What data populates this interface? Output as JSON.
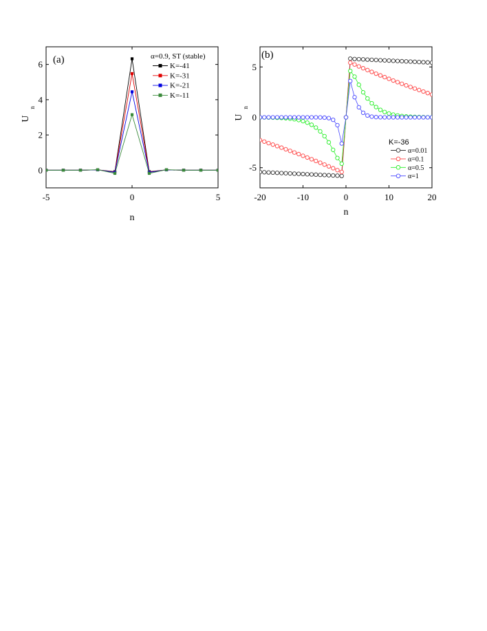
{
  "chart_data": [
    {
      "type": "line",
      "panel_label": "(a)",
      "xlabel": "n",
      "ylabel_main": "U",
      "ylabel_sub": "n",
      "xlim": [
        -5,
        5
      ],
      "ylim": [
        -1,
        7
      ],
      "xticks": [
        -5,
        0,
        5
      ],
      "xtick_labels": [
        "-5",
        "0",
        "5"
      ],
      "yticks": [
        0,
        2,
        4,
        6
      ],
      "ytick_labels": [
        "0",
        "2",
        "4",
        "6"
      ],
      "legend_title": "α=0.9, ST (stable)",
      "legend_position": "top-right",
      "x": [
        -5,
        -4,
        -3,
        -2,
        -1,
        0,
        1,
        2,
        3,
        4,
        5
      ],
      "series": [
        {
          "name": "K=-41",
          "color": "#000000",
          "marker": "filled-square",
          "values": [
            0,
            0,
            0,
            0.02,
            -0.08,
            6.32,
            -0.08,
            0.02,
            0,
            0,
            0
          ]
        },
        {
          "name": "K=-31",
          "color": "#e00000",
          "marker": "filled-square",
          "values": [
            0,
            0,
            0,
            0.02,
            -0.1,
            5.48,
            -0.1,
            0.02,
            0,
            0,
            0
          ]
        },
        {
          "name": "K=-21",
          "color": "#0000e0",
          "marker": "filled-square",
          "values": [
            0,
            0,
            0,
            0.02,
            -0.12,
            4.45,
            -0.12,
            0.02,
            0,
            0,
            0
          ]
        },
        {
          "name": "K=-11",
          "color": "#3a8a3a",
          "marker": "filled-square",
          "values": [
            0,
            0,
            0,
            0.03,
            -0.18,
            3.15,
            -0.18,
            0.03,
            0,
            0,
            0
          ]
        }
      ]
    },
    {
      "type": "scatter",
      "panel_label": "(b)",
      "xlabel": "n",
      "ylabel_main": "U",
      "ylabel_sub": "n",
      "xlim": [
        -20,
        20
      ],
      "ylim": [
        -7,
        7
      ],
      "xticks": [
        -20,
        -10,
        0,
        10,
        20
      ],
      "xtick_labels": [
        "-20",
        "-10",
        "0",
        "10",
        "20"
      ],
      "yticks": [
        -5,
        0,
        5
      ],
      "ytick_labels": [
        "-5",
        "0",
        "5"
      ],
      "legend_title": "K=-36",
      "legend_position": "bottom-right",
      "x": [
        -20,
        -19,
        -18,
        -17,
        -16,
        -15,
        -14,
        -13,
        -12,
        -11,
        -10,
        -9,
        -8,
        -7,
        -6,
        -5,
        -4,
        -3,
        -2,
        -1,
        0,
        1,
        2,
        3,
        4,
        5,
        6,
        7,
        8,
        9,
        10,
        11,
        12,
        13,
        14,
        15,
        16,
        17,
        18,
        19,
        20
      ],
      "series": [
        {
          "name": "α=0.01",
          "color": "#333333",
          "marker": "open-circle",
          "values": [
            -5.43,
            -5.45,
            -5.47,
            -5.49,
            -5.51,
            -5.53,
            -5.55,
            -5.57,
            -5.59,
            -5.61,
            -5.63,
            -5.65,
            -5.67,
            -5.69,
            -5.71,
            -5.73,
            -5.75,
            -5.77,
            -5.79,
            -5.82,
            0,
            5.82,
            5.79,
            5.77,
            5.75,
            5.73,
            5.71,
            5.69,
            5.67,
            5.65,
            5.63,
            5.61,
            5.59,
            5.57,
            5.55,
            5.53,
            5.51,
            5.49,
            5.47,
            5.45,
            5.43
          ]
        },
        {
          "name": "α=0.1",
          "color": "#ff4040",
          "marker": "open-circle",
          "values": [
            -2.26,
            -2.41,
            -2.56,
            -2.71,
            -2.86,
            -3.01,
            -3.17,
            -3.33,
            -3.49,
            -3.65,
            -3.82,
            -3.99,
            -4.16,
            -4.33,
            -4.51,
            -4.69,
            -4.87,
            -5.05,
            -5.24,
            -5.42,
            0,
            5.42,
            5.24,
            5.05,
            4.87,
            4.69,
            4.51,
            4.33,
            4.16,
            3.99,
            3.82,
            3.65,
            3.49,
            3.33,
            3.17,
            3.01,
            2.86,
            2.71,
            2.56,
            2.41,
            2.26
          ]
        },
        {
          "name": "α=0.5",
          "color": "#22ee22",
          "marker": "open-circle",
          "values": [
            -0.01,
            -0.01,
            -0.02,
            -0.03,
            -0.04,
            -0.06,
            -0.09,
            -0.13,
            -0.19,
            -0.27,
            -0.38,
            -0.53,
            -0.74,
            -1.02,
            -1.39,
            -1.87,
            -2.48,
            -3.23,
            -4.04,
            -4.6,
            0,
            4.6,
            4.04,
            3.23,
            2.48,
            1.87,
            1.39,
            1.02,
            0.74,
            0.53,
            0.38,
            0.27,
            0.19,
            0.13,
            0.09,
            0.06,
            0.04,
            0.03,
            0.02,
            0.01,
            0.01
          ]
        },
        {
          "name": "α=1",
          "color": "#4444ff",
          "marker": "open-circle",
          "values": [
            0,
            0,
            0,
            0,
            0,
            0,
            0,
            0,
            0,
            0,
            0,
            0,
            0,
            0,
            -0.01,
            -0.03,
            -0.08,
            -0.25,
            -0.78,
            -2.6,
            0,
            3.6,
            2.0,
            1.0,
            0.45,
            0.18,
            0.07,
            0.02,
            0.01,
            0,
            0,
            0,
            0,
            0,
            0,
            0,
            0,
            0,
            0,
            0,
            0
          ]
        }
      ]
    }
  ]
}
